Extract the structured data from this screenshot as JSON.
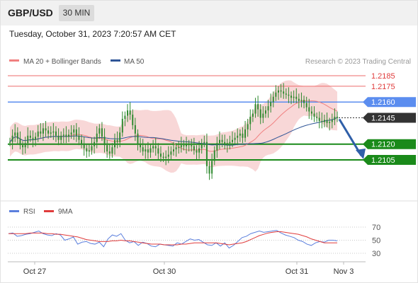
{
  "header": {
    "pair": "GBP/USD",
    "timeframe": "30 MIN"
  },
  "timestamp": "Tuesday, October 31, 2023 7:20:57 AM CET",
  "attribution": "Research © 2023 Trading Central",
  "colors": {
    "candle": "#2f8a2f",
    "resistance": "#ee6b6b",
    "support": "#1a8a1a",
    "pivot": "#5b8def",
    "current": "#333333",
    "ma20_band": "#f6c9c9",
    "ma50": "#2f5597",
    "arrow": "#2f5fa8",
    "rsi": "#5b7fdd",
    "rsi_ma": "#e03c3c"
  },
  "chart_data": [
    {
      "type": "line",
      "title": "",
      "legend": [
        {
          "name": "MA 20 + Bollinger Bands",
          "color": "#f08080"
        },
        {
          "name": "MA 50",
          "color": "#2f5597"
        }
      ],
      "ylim": [
        1.2065,
        1.2195
      ],
      "levels": [
        {
          "label": "1.2185",
          "value": 1.2185,
          "kind": "resistance"
        },
        {
          "label": "1.2175",
          "value": 1.2175,
          "kind": "resistance"
        },
        {
          "label": "1.2160",
          "value": 1.216,
          "kind": "pivot"
        },
        {
          "label": "1.2145",
          "value": 1.2145,
          "kind": "current"
        },
        {
          "label": "1.2120",
          "value": 1.212,
          "kind": "support"
        },
        {
          "label": "1.2105",
          "value": 1.2105,
          "kind": "support"
        }
      ],
      "forecast_arrow": {
        "from": 1.2145,
        "to": 1.2105
      },
      "candles_close": [
        1.2122,
        1.2128,
        1.2131,
        1.2125,
        1.2119,
        1.2117,
        1.2121,
        1.2128,
        1.2126,
        1.2124,
        1.2127,
        1.2132,
        1.213,
        1.2135,
        1.2133,
        1.213,
        1.2131,
        1.2132,
        1.2128,
        1.2124,
        1.2128,
        1.2129,
        1.2127,
        1.2129,
        1.2131,
        1.2134,
        1.2128,
        1.2124,
        1.212,
        1.2116,
        1.2113,
        1.2114,
        1.2118,
        1.2122,
        1.213,
        1.2135,
        1.2127,
        1.2119,
        1.2113,
        1.2111,
        1.2117,
        1.2124,
        1.2122,
        1.2131,
        1.2144,
        1.2147,
        1.2152,
        1.2148,
        1.2138,
        1.213,
        1.212,
        1.2117,
        1.2113,
        1.2115,
        1.2112,
        1.2116,
        1.2118,
        1.2116,
        1.2111,
        1.2108,
        1.2107,
        1.2108,
        1.211,
        1.2113,
        1.2115,
        1.2117,
        1.2117,
        1.2119,
        1.2118,
        1.212,
        1.2119,
        1.2118,
        1.2114,
        1.2112,
        1.2116,
        1.2121,
        1.2122,
        1.2099,
        1.2092,
        1.2104,
        1.2114,
        1.2121,
        1.2124,
        1.2122,
        1.2119,
        1.2121,
        1.2122,
        1.2124,
        1.2126,
        1.2128,
        1.213,
        1.2126,
        1.2134,
        1.2139,
        1.2146,
        1.2149,
        1.2158,
        1.2153,
        1.2145,
        1.2149,
        1.2152,
        1.2156,
        1.216,
        1.2165,
        1.2169,
        1.2171,
        1.217,
        1.2168,
        1.2167,
        1.2166,
        1.2164,
        1.2165,
        1.2163,
        1.2161,
        1.2162,
        1.2159,
        1.2155,
        1.2151,
        1.2149,
        1.2146,
        1.2145,
        1.2142,
        1.2141,
        1.2143,
        1.214,
        1.2141,
        1.2143,
        1.2146,
        1.2145
      ],
      "x_ticks": [
        "Oct 27",
        "Oct 30",
        "Oct 31",
        "Nov 3"
      ]
    },
    {
      "type": "line",
      "title": "",
      "legend": [
        {
          "name": "RSI",
          "color": "#5b7fdd"
        },
        {
          "name": "9MA",
          "color": "#e03c3c"
        }
      ],
      "ylim": [
        20,
        80
      ],
      "y_ticks": [
        "70",
        "50",
        "30"
      ],
      "series": [
        {
          "name": "RSI",
          "values": [
            60,
            61,
            56,
            57,
            59,
            60,
            62,
            64,
            60,
            58,
            57,
            60,
            58,
            50,
            52,
            55,
            44,
            47,
            48,
            45,
            44,
            47,
            40,
            52,
            58,
            56,
            60,
            50,
            46,
            48,
            42,
            47,
            45,
            41,
            40,
            44,
            43,
            42,
            41,
            46,
            44,
            48,
            52,
            50,
            51,
            47,
            43,
            42,
            46,
            41,
            46,
            38,
            42,
            48,
            54,
            56,
            60,
            62,
            64,
            62,
            63,
            64,
            65,
            61,
            58,
            56,
            54,
            50,
            48,
            44,
            42,
            46,
            48,
            47,
            50,
            50,
            49
          ]
        },
        {
          "name": "9MA",
          "values": [
            60,
            60,
            60,
            60,
            60,
            61,
            61,
            61,
            61,
            60,
            60,
            59,
            59,
            58,
            57,
            56,
            55,
            53,
            51,
            50,
            49,
            48,
            48,
            48,
            49,
            49,
            50,
            49,
            49,
            48,
            47,
            46,
            45,
            44,
            44,
            44,
            43,
            43,
            43,
            43,
            44,
            44,
            45,
            46,
            46,
            46,
            46,
            46,
            46,
            45,
            44,
            43,
            44,
            45,
            46,
            48,
            51,
            54,
            57,
            59,
            61,
            62,
            63,
            63,
            62,
            61,
            60,
            59,
            57,
            55,
            52,
            50,
            48,
            46,
            46,
            46,
            46
          ]
        }
      ],
      "x_ticks": [
        "Oct 27",
        "Oct 30",
        "Oct 31",
        "Nov 3"
      ]
    }
  ]
}
